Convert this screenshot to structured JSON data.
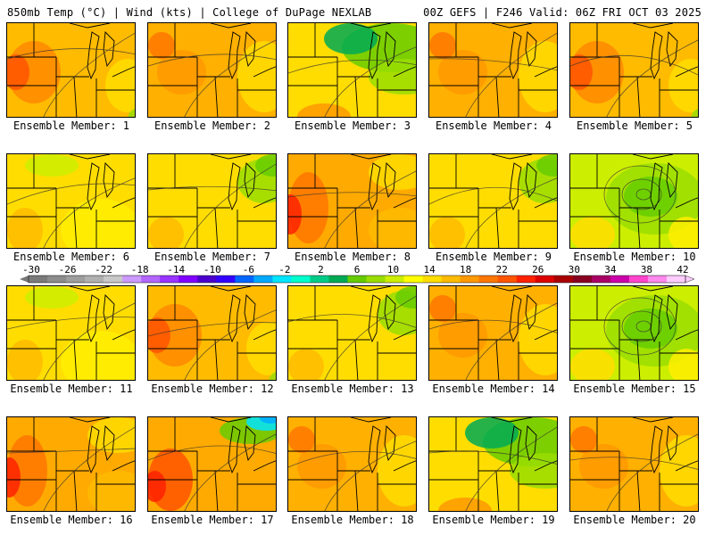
{
  "header": {
    "left": "850mb Temp (°C) | Wind (kts) | College of DuPage NEXLAB",
    "right": "00Z GEFS | F246 Valid: 06Z FRI OCT 03 2025"
  },
  "colorbar": {
    "labels": [
      "-30",
      "-26",
      "-22",
      "-18",
      "-14",
      "-10",
      "-6",
      "-2",
      "2",
      "6",
      "10",
      "14",
      "18",
      "22",
      "26",
      "30",
      "34",
      "38",
      "42"
    ],
    "colors": [
      "#7a7a7a",
      "#8c8c8c",
      "#9e9e9e",
      "#b0b0b0",
      "#c8c8c8",
      "#cc99ff",
      "#b266ff",
      "#9933ff",
      "#7f00ff",
      "#4b00cc",
      "#3300ff",
      "#0066ff",
      "#00aaff",
      "#00e5ff",
      "#00ffcc",
      "#00cc88",
      "#00aa55",
      "#66cc00",
      "#99dd00",
      "#ccee00",
      "#ffff00",
      "#ffdd00",
      "#ffbb00",
      "#ff9900",
      "#ff7700",
      "#ff5500",
      "#ff2200",
      "#dd0000",
      "#aa0000",
      "#880022",
      "#aa0066",
      "#cc00aa",
      "#ff44cc",
      "#ff88ee",
      "#ffccff"
    ]
  },
  "panels": [
    {
      "caption": "Ensemble Member: 1",
      "scheme": "warm-orange-nw"
    },
    {
      "caption": "Ensemble Member: 2",
      "scheme": "orange"
    },
    {
      "caption": "Ensemble Member: 3",
      "scheme": "green-north"
    },
    {
      "caption": "Ensemble Member: 4",
      "scheme": "orange"
    },
    {
      "caption": "Ensemble Member: 5",
      "scheme": "warm-orange-nw"
    },
    {
      "caption": "Ensemble Member: 6",
      "scheme": "yellow"
    },
    {
      "caption": "Ensemble Member: 7",
      "scheme": "yellow-greenish"
    },
    {
      "caption": "Ensemble Member: 8",
      "scheme": "orange-red-w"
    },
    {
      "caption": "Ensemble Member: 9",
      "scheme": "yellow-greenish"
    },
    {
      "caption": "Ensemble Member: 10",
      "scheme": "low-center"
    },
    {
      "caption": "Ensemble Member: 11",
      "scheme": "yellow"
    },
    {
      "caption": "Ensemble Member: 12",
      "scheme": "warm-orange-nw"
    },
    {
      "caption": "Ensemble Member: 13",
      "scheme": "yellow-greenish"
    },
    {
      "caption": "Ensemble Member: 14",
      "scheme": "orange"
    },
    {
      "caption": "Ensemble Member: 15",
      "scheme": "low-center"
    },
    {
      "caption": "Ensemble Member: 16",
      "scheme": "orange-red-w"
    },
    {
      "caption": "Ensemble Member: 17",
      "scheme": "cold-ne-warm-w"
    },
    {
      "caption": "Ensemble Member: 18",
      "scheme": "orange"
    },
    {
      "caption": "Ensemble Member: 19",
      "scheme": "green-north"
    },
    {
      "caption": "Ensemble Member: 20",
      "scheme": "orange"
    }
  ]
}
